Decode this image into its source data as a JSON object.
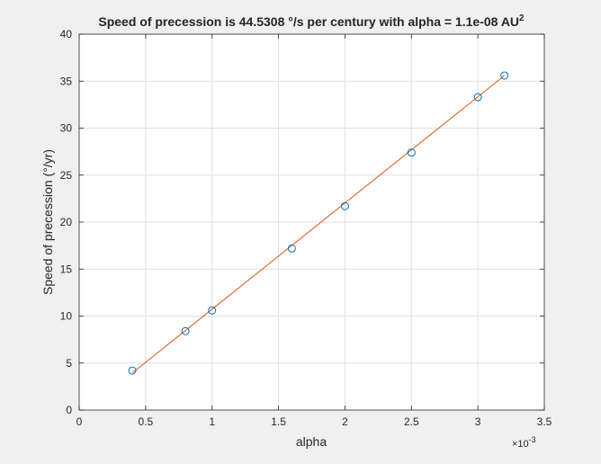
{
  "chart_data": {
    "type": "scatter",
    "title": {
      "prefix": "Speed of precession is 44.5308 °/s per century with alpha = 1.1e-08 AU",
      "superscript": "2"
    },
    "xlabel": "alpha",
    "ylabel": "Speed of precession (°/yr)",
    "x_exponent_base": "×10",
    "x_exponent_power": "-3",
    "xlim": [
      0,
      3.5
    ],
    "ylim": [
      0,
      40
    ],
    "xticks": [
      0,
      0.5,
      1,
      1.5,
      2,
      2.5,
      3,
      3.5
    ],
    "xtick_labels": [
      "0",
      "0.5",
      "1",
      "1.5",
      "2",
      "2.5",
      "3",
      "3.5"
    ],
    "yticks": [
      0,
      5,
      10,
      15,
      20,
      25,
      30,
      35,
      40
    ],
    "ytick_labels": [
      "0",
      "5",
      "10",
      "15",
      "20",
      "25",
      "30",
      "35",
      "40"
    ],
    "grid": true,
    "series": [
      {
        "kind": "markers",
        "marker": "circle",
        "color": "#0072bd",
        "x": [
          0.4,
          0.8,
          1.0,
          1.6,
          2.0,
          2.5,
          3.0,
          3.2
        ],
        "y": [
          4.2,
          8.4,
          10.6,
          17.2,
          21.7,
          27.4,
          33.3,
          35.6
        ]
      },
      {
        "kind": "line",
        "color": "#d95319",
        "x": [
          0.4,
          3.2
        ],
        "y": [
          3.95,
          35.6
        ]
      }
    ]
  }
}
